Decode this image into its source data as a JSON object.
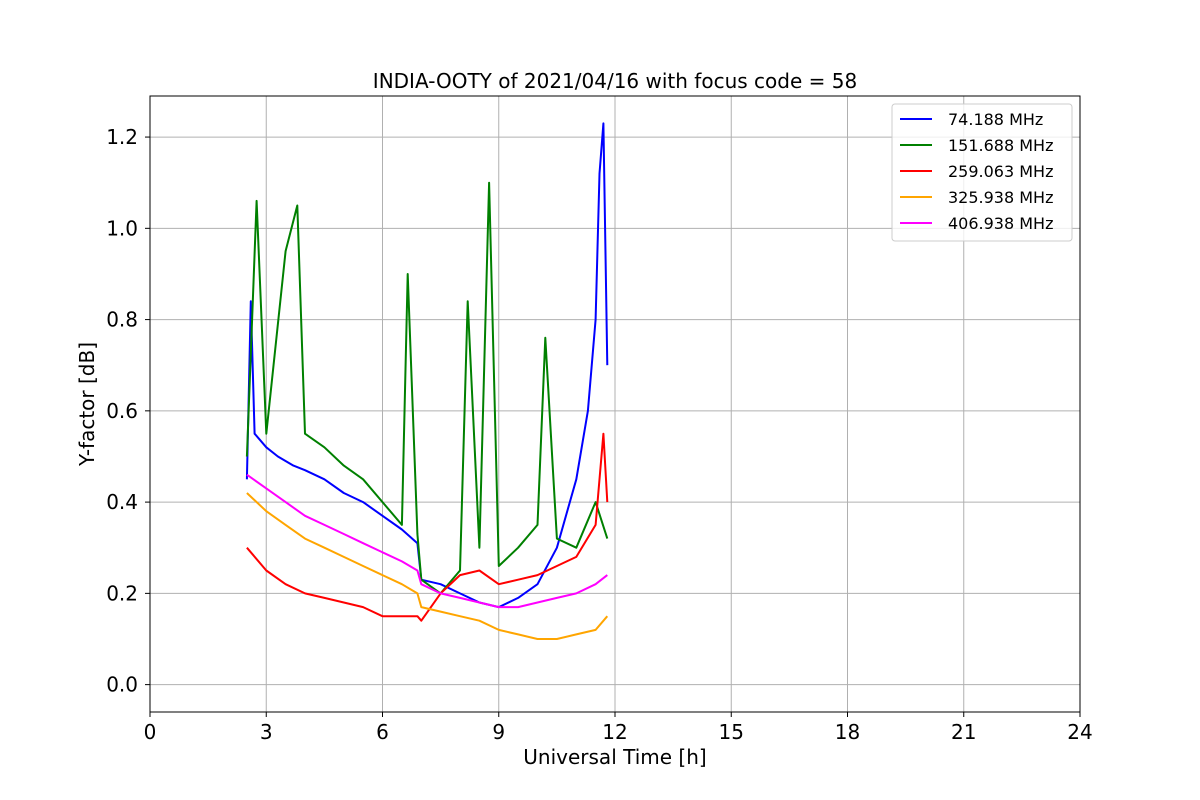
{
  "chart_data": {
    "type": "line",
    "title": "INDIA-OOTY of 2021/04/16 with focus code = 58",
    "xlabel": "Universal Time [h]",
    "ylabel": "Y-factor [dB]",
    "xlim": [
      0,
      24
    ],
    "ylim": [
      -0.06,
      1.29
    ],
    "x_ticks": [
      0,
      3,
      6,
      9,
      12,
      15,
      18,
      21,
      24
    ],
    "x_tick_labels": [
      "0",
      "3",
      "6",
      "9",
      "12",
      "15",
      "18",
      "21",
      "24"
    ],
    "y_ticks": [
      0.0,
      0.2,
      0.4,
      0.6,
      0.8,
      1.0,
      1.2
    ],
    "y_tick_labels": [
      "0.0",
      "0.2",
      "0.4",
      "0.6",
      "0.8",
      "1.0",
      "1.2"
    ],
    "grid": true,
    "legend_position": "top-right",
    "series": [
      {
        "name": " 74.188 MHz",
        "color": "#0000ff",
        "x": [
          2.5,
          2.6,
          2.7,
          3.0,
          3.3,
          3.7,
          4.0,
          4.5,
          5.0,
          5.5,
          6.0,
          6.5,
          6.9,
          7.0,
          7.5,
          8.0,
          8.5,
          9.0,
          9.5,
          10.0,
          10.5,
          11.0,
          11.3,
          11.5,
          11.6,
          11.7,
          11.8
        ],
        "y": [
          0.45,
          0.84,
          0.55,
          0.52,
          0.5,
          0.48,
          0.47,
          0.45,
          0.42,
          0.4,
          0.37,
          0.34,
          0.31,
          0.23,
          0.22,
          0.2,
          0.18,
          0.17,
          0.19,
          0.22,
          0.3,
          0.45,
          0.6,
          0.8,
          1.12,
          1.23,
          0.7
        ]
      },
      {
        "name": "151.688 MHz",
        "color": "#008000",
        "x": [
          2.5,
          2.75,
          3.0,
          3.5,
          3.8,
          4.0,
          4.5,
          5.0,
          5.5,
          6.0,
          6.5,
          6.65,
          6.9,
          7.0,
          7.5,
          8.0,
          8.2,
          8.5,
          8.75,
          9.0,
          9.5,
          10.0,
          10.2,
          10.5,
          11.0,
          11.5,
          11.8
        ],
        "y": [
          0.5,
          1.06,
          0.55,
          0.95,
          1.05,
          0.55,
          0.52,
          0.48,
          0.45,
          0.4,
          0.35,
          0.9,
          0.33,
          0.23,
          0.2,
          0.25,
          0.84,
          0.3,
          1.1,
          0.26,
          0.3,
          0.35,
          0.76,
          0.32,
          0.3,
          0.4,
          0.32
        ]
      },
      {
        "name": "259.063 MHz",
        "color": "#ff0000",
        "x": [
          2.5,
          3.0,
          3.5,
          4.0,
          4.5,
          5.0,
          5.5,
          6.0,
          6.5,
          6.9,
          7.0,
          7.5,
          8.0,
          8.5,
          9.0,
          9.5,
          10.0,
          10.5,
          11.0,
          11.5,
          11.7,
          11.8
        ],
        "y": [
          0.3,
          0.25,
          0.22,
          0.2,
          0.19,
          0.18,
          0.17,
          0.15,
          0.15,
          0.15,
          0.14,
          0.2,
          0.24,
          0.25,
          0.22,
          0.23,
          0.24,
          0.26,
          0.28,
          0.35,
          0.55,
          0.4
        ]
      },
      {
        "name": "325.938 MHz",
        "color": "#ffa500",
        "x": [
          2.5,
          3.0,
          3.5,
          4.0,
          4.5,
          5.0,
          5.5,
          6.0,
          6.5,
          6.9,
          7.0,
          7.5,
          8.0,
          8.5,
          9.0,
          9.5,
          10.0,
          10.5,
          11.0,
          11.5,
          11.8
        ],
        "y": [
          0.42,
          0.38,
          0.35,
          0.32,
          0.3,
          0.28,
          0.26,
          0.24,
          0.22,
          0.2,
          0.17,
          0.16,
          0.15,
          0.14,
          0.12,
          0.11,
          0.1,
          0.1,
          0.11,
          0.12,
          0.15
        ]
      },
      {
        "name": "406.938 MHz",
        "color": "#ff00ff",
        "x": [
          2.5,
          3.0,
          3.5,
          4.0,
          4.5,
          5.0,
          5.5,
          6.0,
          6.5,
          6.9,
          7.0,
          7.5,
          8.0,
          8.5,
          9.0,
          9.5,
          10.0,
          10.5,
          11.0,
          11.5,
          11.8
        ],
        "y": [
          0.46,
          0.43,
          0.4,
          0.37,
          0.35,
          0.33,
          0.31,
          0.29,
          0.27,
          0.25,
          0.22,
          0.2,
          0.19,
          0.18,
          0.17,
          0.17,
          0.18,
          0.19,
          0.2,
          0.22,
          0.24
        ]
      }
    ]
  }
}
